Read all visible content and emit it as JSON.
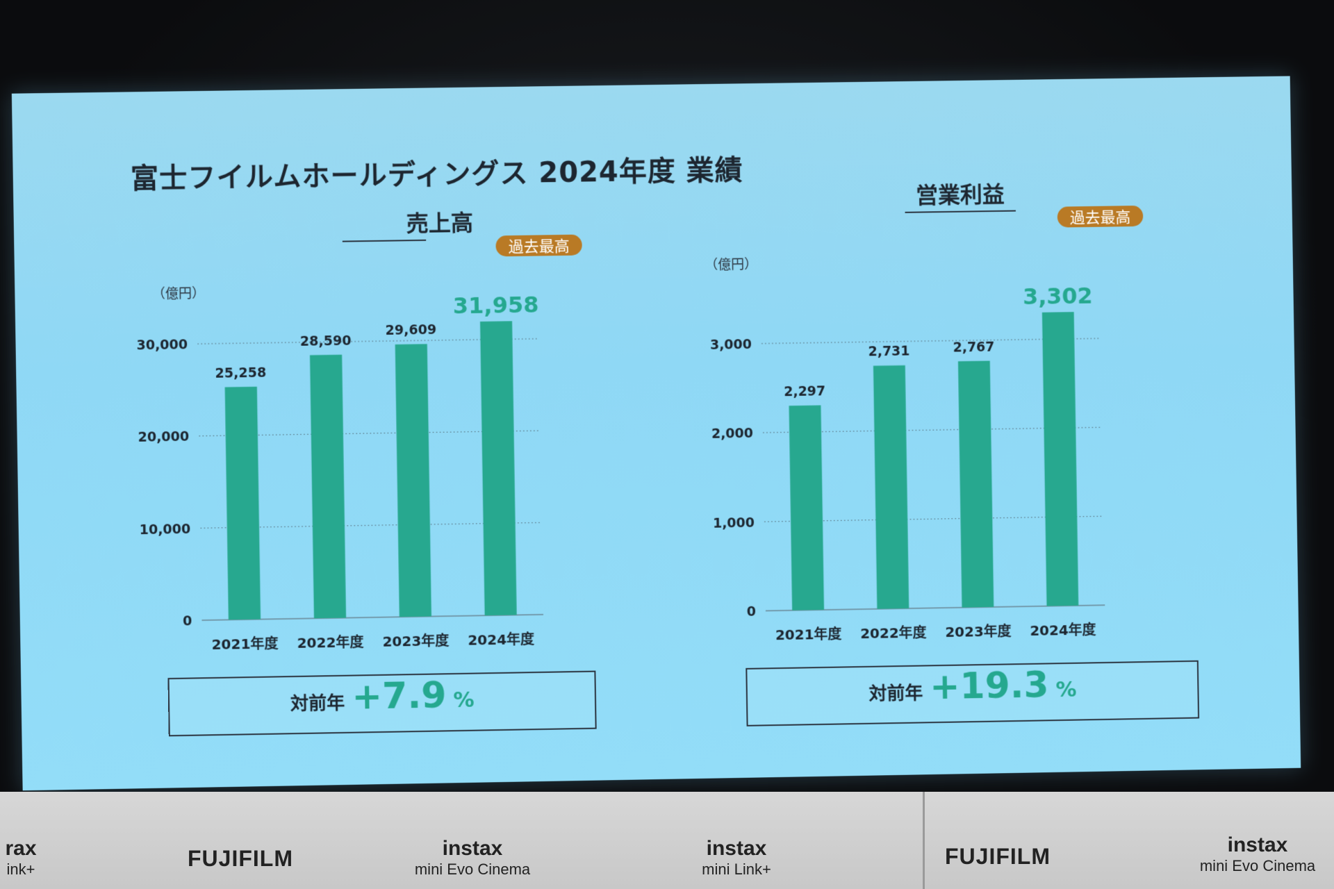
{
  "slide": {
    "title": "富士フイルムホールディングス 2024年度 業績"
  },
  "colors": {
    "bar": "#27a88f",
    "accent": "#25a88f",
    "badge": "#b97a25",
    "text": "#1d2630"
  },
  "chart_data": [
    {
      "type": "bar",
      "title": "売上高",
      "unit": "（億円）",
      "categories": [
        "2021年度",
        "2022年度",
        "2023年度",
        "2024年度"
      ],
      "values": [
        25258,
        28590,
        29609,
        31958
      ],
      "value_labels": [
        "25,258",
        "28,590",
        "29,609",
        "31,958"
      ],
      "yticks": [
        0,
        10000,
        20000,
        30000
      ],
      "ytick_labels": [
        "0",
        "10,000",
        "20,000",
        "30,000"
      ],
      "ylim": [
        0,
        32500
      ],
      "grid": true,
      "highlight": {
        "index": 3,
        "badge": "過去最高"
      },
      "yoy": {
        "label": "対前年",
        "value": "+7.9",
        "unit": "%"
      }
    },
    {
      "type": "bar",
      "title": "営業利益",
      "unit": "（億円）",
      "categories": [
        "2021年度",
        "2022年度",
        "2023年度",
        "2024年度"
      ],
      "values": [
        2297,
        2731,
        2767,
        3302
      ],
      "value_labels": [
        "2,297",
        "2,731",
        "2,767",
        "3,302"
      ],
      "yticks": [
        0,
        1000,
        2000,
        3000
      ],
      "ytick_labels": [
        "0",
        "1,000",
        "2,000",
        "3,000"
      ],
      "ylim": [
        0,
        3350
      ],
      "grid": true,
      "highlight": {
        "index": 3,
        "badge": "過去最高"
      },
      "yoy": {
        "label": "対前年",
        "value": "+19.3",
        "unit": "%"
      }
    }
  ],
  "signage": {
    "items": [
      "rax",
      "ink+",
      "FUJIFILM",
      "instax",
      "mini Evo Cinema",
      "instax",
      "mini Link+",
      "FUJIFILM",
      "instax",
      "mini Evo Cinema"
    ]
  }
}
